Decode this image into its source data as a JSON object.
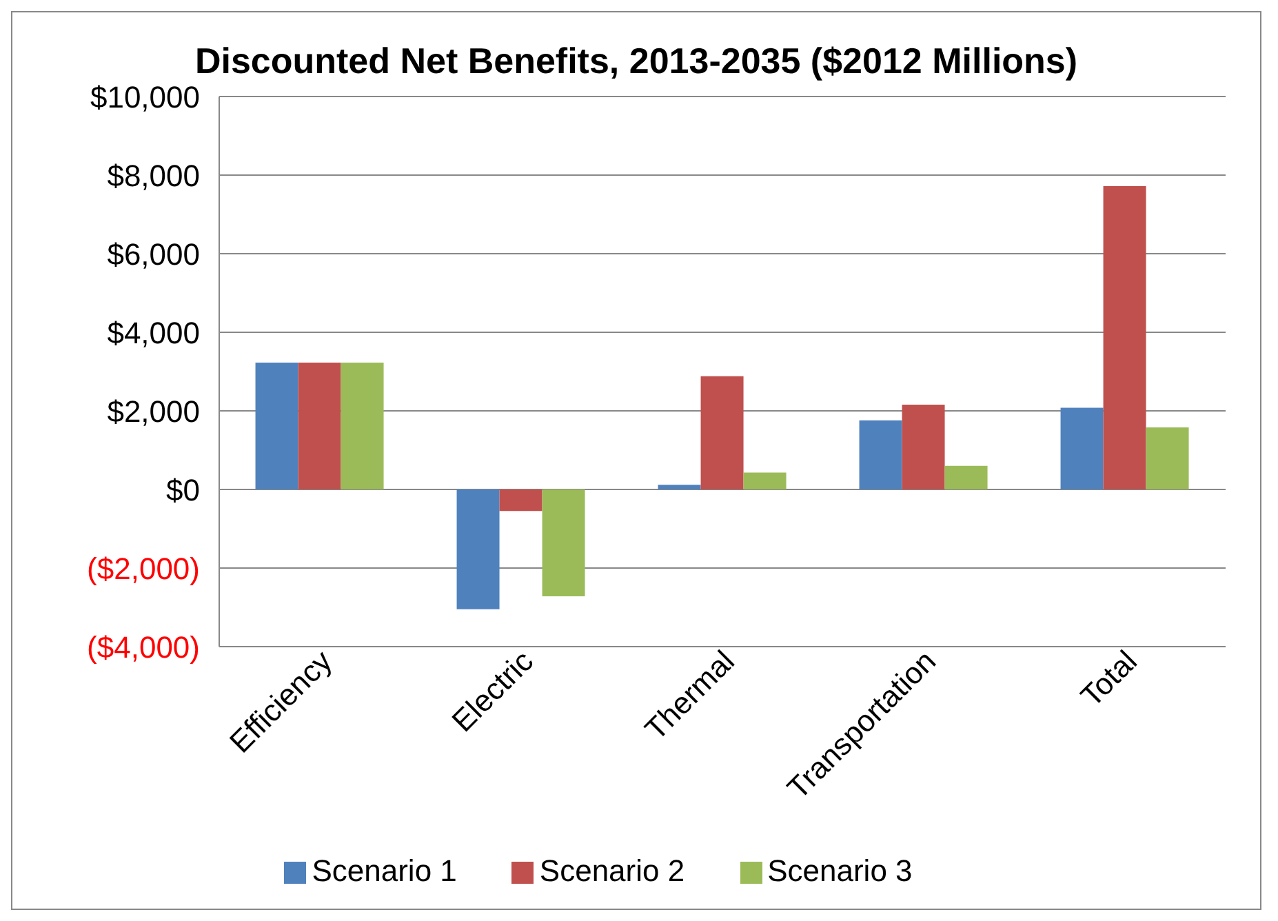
{
  "chart_data": {
    "type": "bar",
    "title": "Discounted Net Benefits, 2013-2035  ($2012 Millions)",
    "categories": [
      "Efficiency",
      "Electric",
      "Thermal",
      "Transportation",
      "Total"
    ],
    "series": [
      {
        "name": "Scenario 1",
        "color": "#4f81bd",
        "values": [
          3230,
          -3050,
          120,
          1760,
          2080
        ]
      },
      {
        "name": "Scenario 2",
        "color": "#c0504d",
        "values": [
          3230,
          -550,
          2880,
          2160,
          7720
        ]
      },
      {
        "name": "Scenario 3",
        "color": "#9bbb59",
        "values": [
          3230,
          -2720,
          430,
          600,
          1580
        ]
      }
    ],
    "ylim": [
      -4000,
      10000
    ],
    "yticks": [
      {
        "value": -4000,
        "label": "($4,000)"
      },
      {
        "value": -2000,
        "label": "($2,000)"
      },
      {
        "value": 0,
        "label": "$0"
      },
      {
        "value": 2000,
        "label": "$2,000"
      },
      {
        "value": 4000,
        "label": "$4,000"
      },
      {
        "value": 6000,
        "label": "$6,000"
      },
      {
        "value": 8000,
        "label": "$8,000"
      },
      {
        "value": 10000,
        "label": "$10,000"
      }
    ],
    "grid": "y",
    "legend": "bottom"
  }
}
